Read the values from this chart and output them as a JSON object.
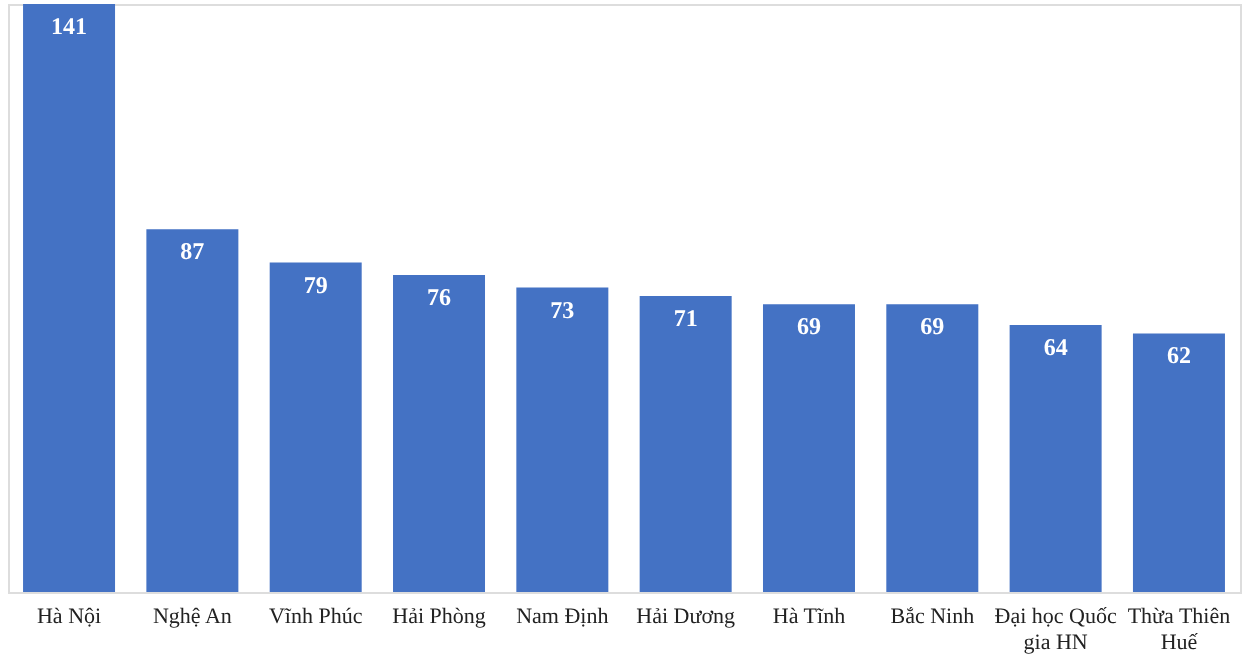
{
  "chart_data": {
    "type": "bar",
    "categories": [
      "Hà Nội",
      "Nghệ An",
      "Vĩnh Phúc",
      "Hải Phòng",
      "Nam Định",
      "Hải Dương",
      "Hà Tĩnh",
      "Bắc Ninh",
      "Đại học Quốc gia HN",
      "Thừa Thiên Huế"
    ],
    "values": [
      141,
      87,
      79,
      76,
      73,
      71,
      69,
      69,
      64,
      62
    ],
    "color": "#4472c4",
    "data_labels": true,
    "grid": false
  }
}
